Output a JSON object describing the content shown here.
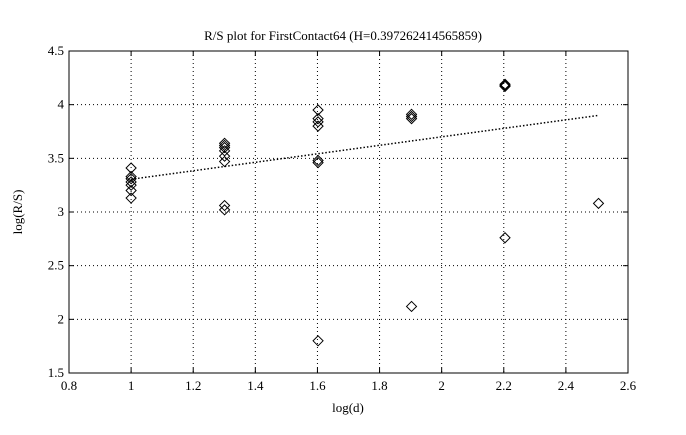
{
  "chart_data": {
    "type": "scatter",
    "title": "R/S plot for FirstContact64 (H=0.397262414565859)",
    "xlabel": "log(d)",
    "ylabel": "log(R/S)",
    "xlim": [
      0.8,
      2.6
    ],
    "ylim": [
      1.5,
      4.5
    ],
    "xticks": [
      "0.8",
      "1",
      "1.2",
      "1.4",
      "1.6",
      "1.8",
      "2",
      "2.2",
      "2.4",
      "2.6"
    ],
    "yticks": [
      "1.5",
      "2",
      "2.5",
      "3",
      "3.5",
      "4",
      "4.5"
    ],
    "grid": true,
    "grid_style": "dotted",
    "marker": "diamond",
    "marker_color": "#000000",
    "series": [
      {
        "points": [
          [
            1.0,
            3.41
          ],
          [
            1.0,
            3.33
          ],
          [
            1.0,
            3.31
          ],
          [
            1.0,
            3.28
          ],
          [
            1.0,
            3.25
          ],
          [
            1.0,
            3.2
          ],
          [
            1.0,
            3.13
          ],
          [
            1.301,
            3.64
          ],
          [
            1.301,
            3.62
          ],
          [
            1.301,
            3.6
          ],
          [
            1.301,
            3.57
          ],
          [
            1.301,
            3.52
          ],
          [
            1.301,
            3.47
          ],
          [
            1.301,
            3.06
          ],
          [
            1.301,
            3.02
          ],
          [
            1.602,
            3.95
          ],
          [
            1.602,
            3.87
          ],
          [
            1.602,
            3.84
          ],
          [
            1.602,
            3.8
          ],
          [
            1.602,
            3.48
          ],
          [
            1.602,
            3.46
          ],
          [
            1.602,
            1.8
          ],
          [
            1.903,
            3.91
          ],
          [
            1.903,
            3.89
          ],
          [
            1.903,
            3.87
          ],
          [
            1.903,
            2.12
          ],
          [
            2.204,
            4.19
          ],
          [
            2.204,
            4.18
          ],
          [
            2.204,
            4.17
          ],
          [
            2.204,
            2.76
          ],
          [
            2.505,
            3.08
          ]
        ]
      }
    ],
    "fit_line": {
      "style": "dotted",
      "x": [
        1.0,
        2.505
      ],
      "y": [
        3.305,
        3.9
      ]
    }
  }
}
